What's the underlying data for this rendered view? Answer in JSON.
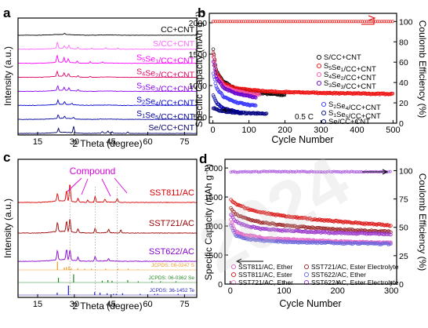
{
  "panel_letters": [
    "a",
    "b",
    "c",
    "d"
  ],
  "watermark": "2024",
  "chart_data": [
    {
      "panel": "a",
      "type": "line",
      "xlabel": "2 Theta (degree)",
      "ylabel": "Intensity (a.u.)",
      "xlim": [
        7,
        80
      ],
      "xticks": [
        15,
        30,
        45,
        60,
        75
      ],
      "series": [
        {
          "name": "CC+CNT",
          "color": "#000000",
          "peaks": [
            [
              26.0,
              3
            ]
          ]
        },
        {
          "name": "S/CC+CNT",
          "color": "#ff66ff",
          "peaks": [
            [
              23.1,
              12
            ],
            [
              25.9,
              5
            ],
            [
              27.8,
              6
            ],
            [
              31.5,
              3
            ],
            [
              37,
              2
            ],
            [
              42.8,
              2
            ],
            [
              47.8,
              2
            ]
          ]
        },
        {
          "name": "S5Se1/CC+CNT",
          "color": "#ff00ff",
          "peaks": [
            [
              23.0,
              14
            ],
            [
              25.8,
              9
            ],
            [
              27.5,
              7
            ],
            [
              31.2,
              4
            ],
            [
              36.5,
              3
            ],
            [
              41.5,
              2
            ]
          ]
        },
        {
          "name": "S4Se2/CC+CNT",
          "color": "#dd0060",
          "peaks": [
            [
              23.0,
              10
            ],
            [
              25.8,
              7
            ],
            [
              27.6,
              6
            ],
            [
              31.5,
              3
            ],
            [
              36.5,
              2
            ]
          ]
        },
        {
          "name": "S3Se3/CC+CNT",
          "color": "#8800ee",
          "peaks": [
            [
              23.2,
              9
            ],
            [
              25.8,
              6
            ],
            [
              27.8,
              5
            ],
            [
              31.5,
              3
            ]
          ]
        },
        {
          "name": "S2Se4/CC+CNT",
          "color": "#0000cc",
          "peaks": [
            [
              23.3,
              8
            ],
            [
              26,
              5
            ],
            [
              29,
              3
            ]
          ]
        },
        {
          "name": "S1Se5/CC+CNT",
          "color": "#000099",
          "peaks": [
            [
              23.4,
              7
            ],
            [
              26,
              4
            ],
            [
              29.6,
              3
            ]
          ]
        },
        {
          "name": "Se/CC+CNT",
          "color": "#000066",
          "peaks": [
            [
              23.5,
              8
            ],
            [
              29.7,
              13
            ],
            [
              41.4,
              3
            ],
            [
              43.7,
              4
            ],
            [
              45.4,
              3
            ],
            [
              51.8,
              3
            ]
          ]
        }
      ]
    },
    {
      "panel": "b",
      "type": "scatter",
      "xlabel": "Cycle Number",
      "ylabel": "Specific Capacity (mAh g⁻¹)",
      "y2label": "Coulomb Efficiency (%)",
      "xlim": [
        -10,
        510
      ],
      "ylim": [
        400,
        2150
      ],
      "y2lim": [
        0,
        108
      ],
      "xticks": [
        0,
        100,
        200,
        300,
        400,
        500
      ],
      "yticks": [
        500,
        1000,
        1500,
        2000
      ],
      "y2ticks": [
        0,
        20,
        40,
        60,
        80,
        100
      ],
      "annotation": "0.5 C",
      "efficiency_percent": 100,
      "series": [
        {
          "name": "S/CC+CNT",
          "color": "#000000",
          "marker": "circle",
          "cycles": [
            1,
            10,
            30,
            60,
            100,
            150,
            200
          ],
          "capacity": [
            1570,
            1220,
            1060,
            960,
            900,
            870,
            850
          ]
        },
        {
          "name": "S5Se1/CC+CNT",
          "color": "#ee1111",
          "marker": "circle",
          "cycles": [
            1,
            10,
            30,
            60,
            100,
            150,
            200,
            300,
            400,
            500
          ],
          "capacity": [
            1520,
            1210,
            1030,
            960,
            930,
            905,
            895,
            882,
            872,
            865
          ]
        },
        {
          "name": "S4Se2/CC+CNT",
          "color": "#ff55aa",
          "marker": "circle",
          "cycles": [
            1,
            10,
            30,
            60,
            100,
            130
          ],
          "capacity": [
            1450,
            1150,
            1000,
            920,
            870,
            850
          ]
        },
        {
          "name": "S3Se3/CC+CNT",
          "color": "#6600cc",
          "marker": "circle",
          "cycles": [
            1,
            10,
            30,
            60,
            100,
            120
          ],
          "capacity": [
            1380,
            1120,
            960,
            880,
            830,
            810
          ]
        },
        {
          "name": "S2Se4/CC+CNT",
          "color": "#3333ff",
          "marker": "circle",
          "cycles": [
            1,
            10,
            30,
            60,
            100,
            120
          ],
          "capacity": [
            1200,
            960,
            820,
            740,
            690,
            680
          ]
        },
        {
          "name": "S1Se5/CC+CNT",
          "color": "#0000aa",
          "marker": "circle",
          "cycles": [
            1,
            10,
            30,
            60,
            80
          ],
          "capacity": [
            850,
            720,
            630,
            590,
            570
          ]
        },
        {
          "name": "Se/CC+CNT",
          "color": "#000080",
          "marker": "circle",
          "cycles": [
            1,
            20,
            50,
            100,
            150
          ],
          "capacity": [
            640,
            600,
            570,
            560,
            550
          ]
        }
      ]
    },
    {
      "panel": "c",
      "type": "line",
      "xlabel": "2 Theta (degree)",
      "ylabel": "Intensity (a.u.)",
      "xlim": [
        7,
        80
      ],
      "xticks": [
        15,
        30,
        45,
        60,
        75
      ],
      "annotation": "Compound",
      "series": [
        {
          "name": "SST811/AC",
          "color": "#dd0000",
          "peaks": [
            [
              23.1,
              10
            ],
            [
              26.8,
              14
            ],
            [
              28.2,
              24
            ],
            [
              31.5,
              5
            ],
            [
              35.5,
              3
            ],
            [
              38.5,
              8
            ],
            [
              42.5,
              4
            ],
            [
              47.5,
              5
            ]
          ]
        },
        {
          "name": "SST721/AC",
          "color": "#990000",
          "peaks": [
            [
              23.1,
              12
            ],
            [
              26.8,
              14
            ],
            [
              28.2,
              18
            ],
            [
              31.5,
              5
            ],
            [
              38.5,
              6
            ],
            [
              44,
              4
            ],
            [
              49,
              4
            ]
          ]
        },
        {
          "name": "SST622/AC",
          "color": "#8800cc",
          "peaks": [
            [
              23.1,
              12
            ],
            [
              26.8,
              14
            ],
            [
              28.2,
              14
            ],
            [
              31.5,
              5
            ],
            [
              38.5,
              6
            ],
            [
              44,
              3
            ]
          ]
        }
      ],
      "references": [
        {
          "name": "JCPDS: 08-0247 S",
          "color": "#ee9922",
          "sticks": [
            [
              23.1,
              14
            ],
            [
              25.9,
              4
            ],
            [
              26.8,
              5
            ],
            [
              27.8,
              6
            ],
            [
              28.7,
              3
            ],
            [
              31.4,
              3
            ],
            [
              34.2,
              2
            ],
            [
              37,
              2
            ],
            [
              42.8,
              2
            ],
            [
              47.8,
              2
            ],
            [
              52,
              2
            ],
            [
              56,
              1
            ]
          ]
        },
        {
          "name": "JCPDS: 06-0362 Se",
          "color": "#228822",
          "sticks": [
            [
              23.5,
              8
            ],
            [
              29.7,
              14
            ],
            [
              41.4,
              3
            ],
            [
              43.7,
              4
            ],
            [
              45.4,
              3
            ],
            [
              51.8,
              4
            ],
            [
              56.1,
              2
            ],
            [
              61.7,
              2
            ],
            [
              65.2,
              2
            ],
            [
              71.5,
              2
            ]
          ]
        },
        {
          "name": "JCPDS: 36-1452 Te",
          "color": "#2222bb",
          "sticks": [
            [
              23.0,
              4
            ],
            [
              27.6,
              16
            ],
            [
              38.3,
              5
            ],
            [
              40.5,
              4
            ],
            [
              43.4,
              3
            ],
            [
              46,
              2
            ],
            [
              47.1,
              2
            ],
            [
              49.7,
              3
            ],
            [
              56.9,
              2
            ],
            [
              62.8,
              2
            ],
            [
              64,
              2
            ],
            [
              72.4,
              2
            ]
          ]
        }
      ]
    },
    {
      "panel": "d",
      "type": "scatter",
      "xlabel": "Cycle Number",
      "ylabel": "Specific Capacity (mAh g⁻¹)",
      "y2label": "Coulomb Efficiency (%)",
      "xlim": [
        -10,
        310
      ],
      "ylim": [
        0,
        2150
      ],
      "y2lim": [
        0,
        110
      ],
      "xticks": [
        0,
        100,
        200,
        300
      ],
      "yticks": [
        0,
        500,
        1000,
        1500,
        2000
      ],
      "y2ticks": [
        0,
        25,
        50,
        75,
        100
      ],
      "efficiency_percent": 99,
      "series": [
        {
          "name": "SST811/AC, Ether",
          "color": "#dd55bb",
          "marker": "square",
          "cycles": [
            1,
            10,
            30,
            60,
            100,
            150,
            200,
            250,
            300
          ],
          "capacity": [
            1100,
            900,
            840,
            800,
            770,
            750,
            735,
            720,
            710
          ]
        },
        {
          "name": "SST721/AC, Ether",
          "color": "#ee77cc",
          "marker": "circle",
          "cycles": [
            1,
            10,
            30,
            60,
            100,
            150,
            200,
            250,
            300
          ],
          "capacity": [
            1050,
            870,
            810,
            780,
            760,
            740,
            730,
            720,
            710
          ]
        },
        {
          "name": "SST622/AC, Ether",
          "color": "#6666dd",
          "marker": "triangle-left",
          "cycles": [
            1,
            10,
            30,
            60,
            100,
            150,
            200,
            250,
            300
          ],
          "capacity": [
            1000,
            830,
            780,
            750,
            730,
            715,
            705,
            700,
            690
          ]
        },
        {
          "name": "SST811/AC, Ester",
          "color": "#dd1111",
          "marker": "circle",
          "cycles": [
            1,
            10,
            30,
            60,
            100,
            150,
            200,
            250,
            300
          ],
          "capacity": [
            1450,
            1380,
            1300,
            1230,
            1170,
            1120,
            1080,
            1040,
            1010
          ]
        },
        {
          "name": "SST721/AC, Ester Electrolyte",
          "color": "#992222",
          "marker": "triangle-up",
          "cycles": [
            1,
            10,
            30,
            60,
            100,
            150,
            200,
            250,
            300
          ],
          "capacity": [
            1300,
            1200,
            1120,
            1060,
            1010,
            970,
            940,
            920,
            900
          ]
        },
        {
          "name": "SST622/AC, Ester Electrolyte",
          "color": "#9933cc",
          "marker": "triangle-right",
          "cycles": [
            1,
            10,
            30,
            60,
            100,
            150,
            200,
            250,
            300
          ],
          "capacity": [
            1200,
            1080,
            1000,
            950,
            920,
            900,
            880,
            870,
            860
          ]
        }
      ]
    }
  ]
}
